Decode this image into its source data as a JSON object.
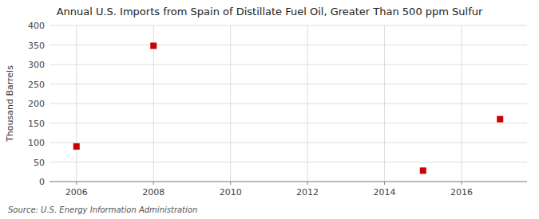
{
  "chart_data": {
    "type": "scatter",
    "title": "Annual U.S. Imports from Spain of Distillate Fuel Oil, Greater Than 500 ppm Sulfur",
    "ylabel": "Thousand Barrels",
    "source": "Source: U.S. Energy Information Administration",
    "x": [
      2006,
      2008,
      2015,
      2017
    ],
    "values": [
      90,
      348,
      28,
      160
    ],
    "color": "#cc0000",
    "marker": "square",
    "xlim": [
      2005.3,
      2017.7
    ],
    "ylim": [
      0,
      400
    ],
    "xticks": [
      2006,
      2008,
      2010,
      2012,
      2014,
      2016
    ],
    "yticks": [
      0,
      50,
      100,
      150,
      200,
      250,
      300,
      350,
      400
    ],
    "grid": true
  }
}
